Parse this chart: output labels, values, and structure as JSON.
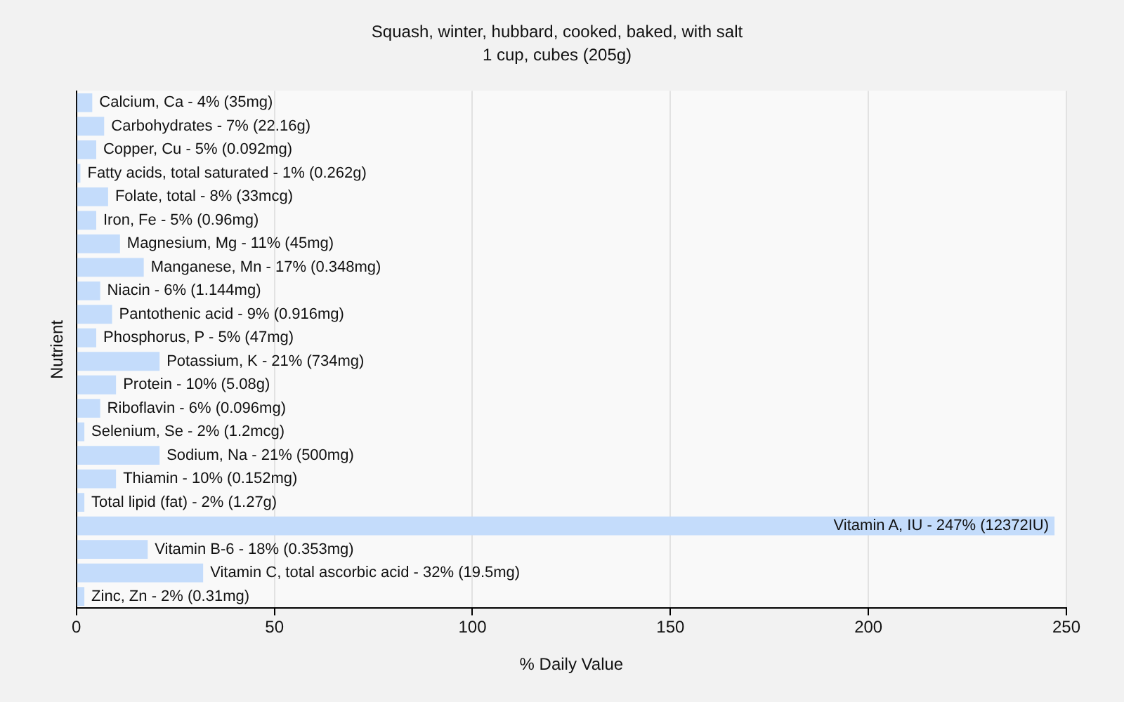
{
  "chart_data": {
    "type": "bar",
    "orientation": "horizontal",
    "title": "Squash, winter, hubbard, cooked, baked, with salt",
    "subtitle": "1 cup, cubes (205g)",
    "xlabel": "% Daily Value",
    "ylabel": "Nutrient",
    "categories": [
      "Calcium, Ca - 4% (35mg)",
      "Carbohydrates - 7% (22.16g)",
      "Copper, Cu - 5% (0.092mg)",
      "Fatty acids, total saturated - 1% (0.262g)",
      "Folate, total - 8% (33mcg)",
      "Iron, Fe - 5% (0.96mg)",
      "Magnesium, Mg - 11% (45mg)",
      "Manganese, Mn - 17% (0.348mg)",
      "Niacin - 6% (1.144mg)",
      "Pantothenic acid - 9% (0.916mg)",
      "Phosphorus, P - 5% (47mg)",
      "Potassium, K - 21% (734mg)",
      "Protein - 10% (5.08g)",
      "Riboflavin - 6% (0.096mg)",
      "Selenium, Se - 2% (1.2mcg)",
      "Sodium, Na - 21% (500mg)",
      "Thiamin - 10% (0.152mg)",
      "Total lipid (fat) - 2% (1.27g)",
      "Vitamin A, IU - 247% (12372IU)",
      "Vitamin B-6 - 18% (0.353mg)",
      "Vitamin C, total ascorbic acid - 32% (19.5mg)",
      "Zinc, Zn - 2% (0.31mg)"
    ],
    "values": [
      4,
      7,
      5,
      1,
      8,
      5,
      11,
      17,
      6,
      9,
      5,
      21,
      10,
      6,
      2,
      21,
      10,
      2,
      247,
      18,
      32,
      2
    ],
    "color": "#c4dcfb",
    "xlim": [
      0,
      250
    ],
    "xticks": [
      0,
      50,
      100,
      150,
      200,
      250
    ],
    "grid": "x"
  }
}
